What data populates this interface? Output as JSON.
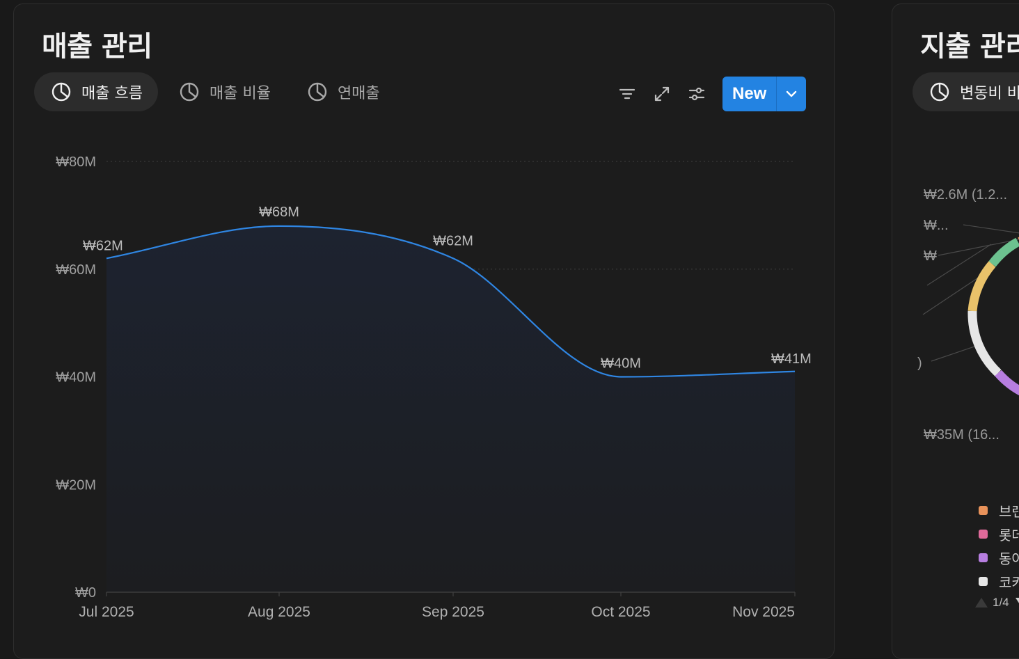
{
  "main": {
    "title": "매출 관리",
    "tabs": [
      {
        "label": "매출 흐름",
        "active": true
      },
      {
        "label": "매출 비율",
        "active": false
      },
      {
        "label": "연매출",
        "active": false
      }
    ],
    "new_label": "New"
  },
  "chart_data": {
    "type": "area",
    "x": [
      "Jul 2025",
      "Aug 2025",
      "Sep 2025",
      "Oct 2025",
      "Nov 2025"
    ],
    "series": [
      {
        "values": [
          62,
          68,
          62,
          40,
          41
        ]
      }
    ],
    "data_labels": [
      "₩62M",
      "₩68M",
      "₩62M",
      "₩40M",
      "₩41M"
    ],
    "yticks": [
      "₩0",
      "₩20M",
      "₩40M",
      "₩60M",
      "₩80M"
    ],
    "ylim": [
      0,
      80
    ],
    "grid": true,
    "line_color": "#2f86e3"
  },
  "side": {
    "title": "지출 관리",
    "tab_label": "변동비 비율",
    "labels": [
      "₩2.6M (1.2...",
      "₩...",
      "₩",
      ")",
      "₩35M (16..."
    ],
    "legend": [
      {
        "label": "브랜드",
        "color": "#e8925a"
      },
      {
        "label": "롯데",
        "color": "#e06a9a"
      },
      {
        "label": "동아",
        "color": "#b77ee0"
      },
      {
        "label": "코카",
        "color": "#e6e6e6"
      }
    ],
    "pager": "1/4"
  }
}
